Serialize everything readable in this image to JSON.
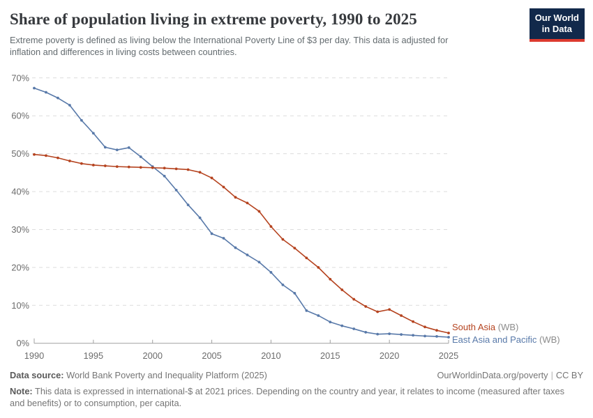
{
  "header": {
    "title": "Share of population living in extreme poverty, 1990 to 2025",
    "subtitle_lines": [
      "Extreme poverty is defined as living below the International Poverty Line of $3 per day. This data is adjusted for",
      "inflation and differences in living costs between countries."
    ]
  },
  "logo": {
    "line1": "Our World",
    "line2": "in Data"
  },
  "chart_data": {
    "type": "line",
    "title": "Share of population living in extreme poverty, 1990 to 2025",
    "x": [
      1990,
      1991,
      1992,
      1993,
      1994,
      1995,
      1996,
      1997,
      1998,
      1999,
      2000,
      2001,
      2002,
      2003,
      2004,
      2005,
      2006,
      2007,
      2008,
      2009,
      2010,
      2011,
      2012,
      2013,
      2014,
      2015,
      2016,
      2017,
      2018,
      2019,
      2020,
      2021,
      2022,
      2023,
      2024,
      2025
    ],
    "series": [
      {
        "name": "South Asia",
        "suffix": "(WB)",
        "color": "#b5431f",
        "legend_y": 474,
        "values": [
          49.8,
          49.5,
          48.9,
          48.1,
          47.4,
          47.0,
          46.8,
          46.6,
          46.5,
          46.4,
          46.3,
          46.2,
          46.0,
          45.8,
          45.1,
          43.6,
          41.2,
          38.5,
          37.0,
          34.8,
          30.8,
          27.4,
          25.1,
          22.5,
          20.0,
          16.9,
          14.1,
          11.6,
          9.7,
          8.3,
          8.9,
          7.3,
          5.7,
          4.3,
          3.4,
          2.7
        ]
      },
      {
        "name": "East Asia and Pacific",
        "suffix": "(WB)",
        "color": "#5879a9",
        "legend_y": 492,
        "values": [
          67.3,
          66.2,
          64.7,
          62.8,
          58.8,
          55.4,
          51.7,
          51.0,
          51.6,
          49.2,
          46.6,
          44.1,
          40.4,
          36.5,
          33.1,
          28.9,
          27.7,
          25.2,
          23.3,
          21.4,
          18.7,
          15.4,
          13.2,
          8.6,
          7.3,
          5.6,
          4.6,
          3.8,
          2.9,
          2.4,
          2.5,
          2.3,
          2.1,
          1.9,
          1.8,
          1.6
        ]
      }
    ],
    "ylim": [
      0,
      70
    ],
    "yticks": [
      0,
      10,
      20,
      30,
      40,
      50,
      60,
      70
    ],
    "ytick_suffix": "%",
    "xticks": [
      1990,
      1995,
      2000,
      2005,
      2010,
      2015,
      2020,
      2025
    ],
    "grid": "dashed horizontal",
    "legend_position": "right-of-line-ends",
    "legend_suffix_color": "#8c8c8c",
    "axis_color": "#a0a0a0",
    "grid_color": "#dcdcdc",
    "tick_label_color": "#6b6b6b"
  },
  "footer": {
    "data_source_label": "Data source:",
    "data_source": "World Bank Poverty and Inequality Platform (2025)",
    "link": "OurWorldinData.org/poverty",
    "separator": "|",
    "license": "CC BY",
    "note_label": "Note:",
    "note_lines": [
      "This data is expressed in international-$ at 2021 prices. Depending on the country and year, it relates to income (measured after taxes",
      "and benefits) or to consumption, per capita."
    ]
  }
}
